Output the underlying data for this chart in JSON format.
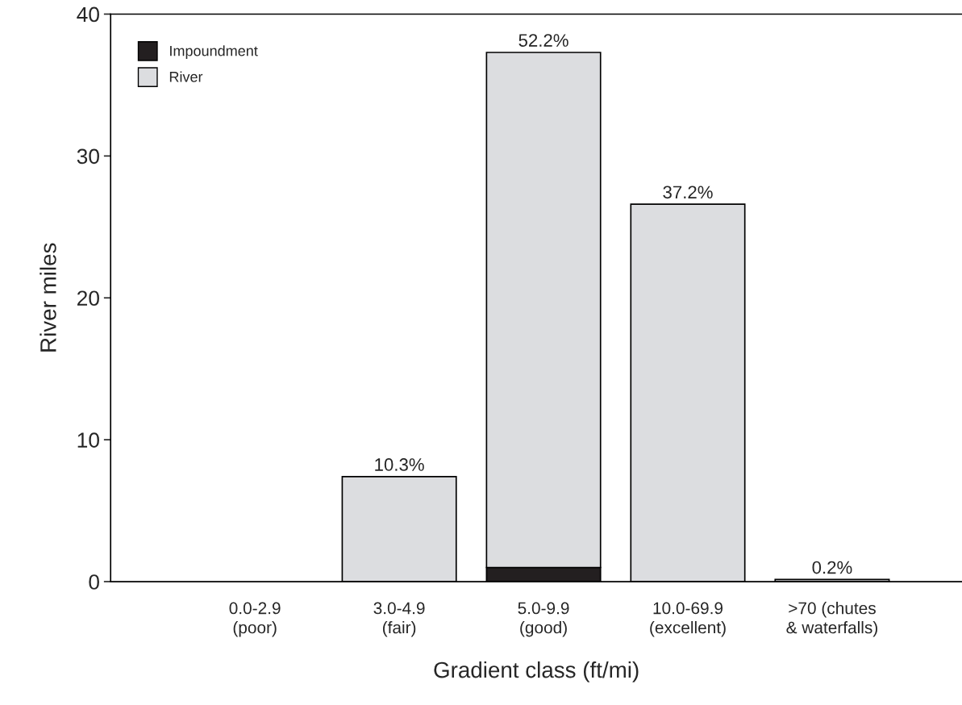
{
  "chart_data": {
    "type": "bar",
    "stacked": true,
    "xlabel": "Gradient class (ft/mi)",
    "ylabel": "River miles",
    "categories": [
      "0.0-2.9\n(poor)",
      "3.0-4.9\n(fair)",
      "5.0-9.9\n(good)",
      "10.0-69.9\n(excellent)",
      ">70 (chutes\n& waterfalls)"
    ],
    "series": [
      {
        "name": "Impoundment",
        "color": "#231f20",
        "values": [
          null,
          null,
          1.0,
          null,
          null
        ]
      },
      {
        "name": "River",
        "color": "#dcdde0",
        "values": [
          null,
          7.4,
          36.3,
          26.6,
          0.15
        ]
      }
    ],
    "annotations": [
      {
        "text": "10.3%",
        "x": "3.0-4.9\n(fair)",
        "y": 7.4
      },
      {
        "text": "52.2%",
        "x": "5.0-9.9\n(good)",
        "y": 37.3
      },
      {
        "text": "37.2%",
        "x": "10.0-69.9\n(excellent)",
        "y": 26.6
      },
      {
        "text": "0.2%",
        "x": ">70 (chutes\n& waterfalls)",
        "y": 0.15
      }
    ],
    "ylim": [
      0,
      40
    ],
    "yticks": [
      0,
      10,
      20,
      30,
      40
    ],
    "grid": false,
    "legend": "top left"
  }
}
